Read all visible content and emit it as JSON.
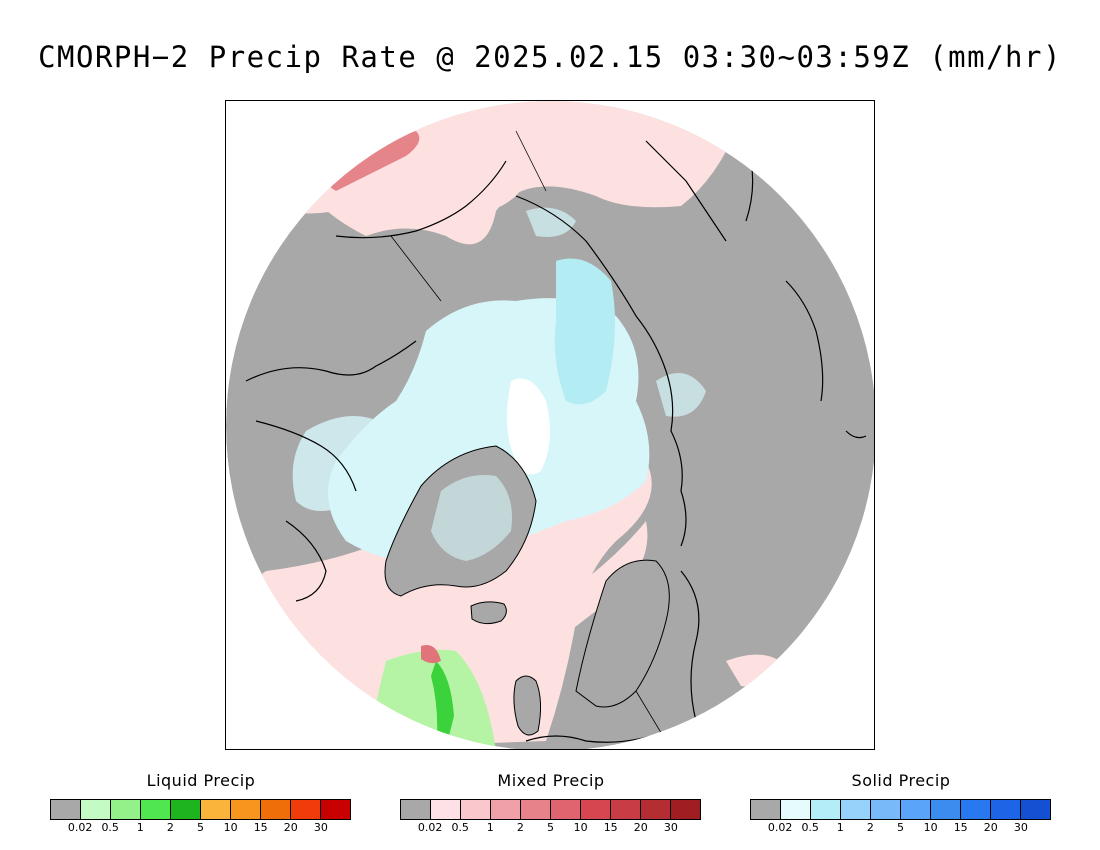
{
  "title": "CMORPH−2 Precip Rate @ 2025.02.15 03:30~03:59Z (mm/hr)",
  "map": {
    "projection": "north-polar-stereographic",
    "colors": {
      "no_precip": "#a8a8a8",
      "ocean_mixed_light": "#fde1e1",
      "solid_light": "#d6f6fa",
      "solid_lightest": "#ffffff",
      "solid_medium": "#b4ecf4",
      "mixed_strong": "#e1747a",
      "liquid_light": "#b4f4a4",
      "liquid_medium": "#3cd23c",
      "coastline": "#000000"
    }
  },
  "legends": [
    {
      "title": "Liquid Precip",
      "colors": [
        "#a8a8a8",
        "#c4fac4",
        "#94f088",
        "#50e650",
        "#1eb41e",
        "#fab43c",
        "#f6961e",
        "#f06e0a",
        "#f03c0a",
        "#c80000"
      ],
      "ticks": [
        "0.02",
        "0.5",
        "1",
        "2",
        "5",
        "10",
        "15",
        "20",
        "30"
      ]
    },
    {
      "title": "Mixed Precip",
      "colors": [
        "#a8a8a8",
        "#fde1e6",
        "#fac8cc",
        "#f0a0a8",
        "#e8828a",
        "#e06470",
        "#d64650",
        "#c83c46",
        "#b42d32",
        "#a01e22"
      ],
      "ticks": [
        "0.02",
        "0.5",
        "1",
        "2",
        "5",
        "10",
        "15",
        "20",
        "30"
      ]
    },
    {
      "title": "Solid Precip",
      "colors": [
        "#a8a8a8",
        "#e6fcfc",
        "#b4ecf8",
        "#96d2fa",
        "#78b9fa",
        "#5aa5fa",
        "#3c8cf0",
        "#2878f0",
        "#1e64e6",
        "#1450d2"
      ],
      "ticks": [
        "0.02",
        "0.5",
        "1",
        "2",
        "5",
        "10",
        "15",
        "20",
        "30"
      ]
    }
  ]
}
